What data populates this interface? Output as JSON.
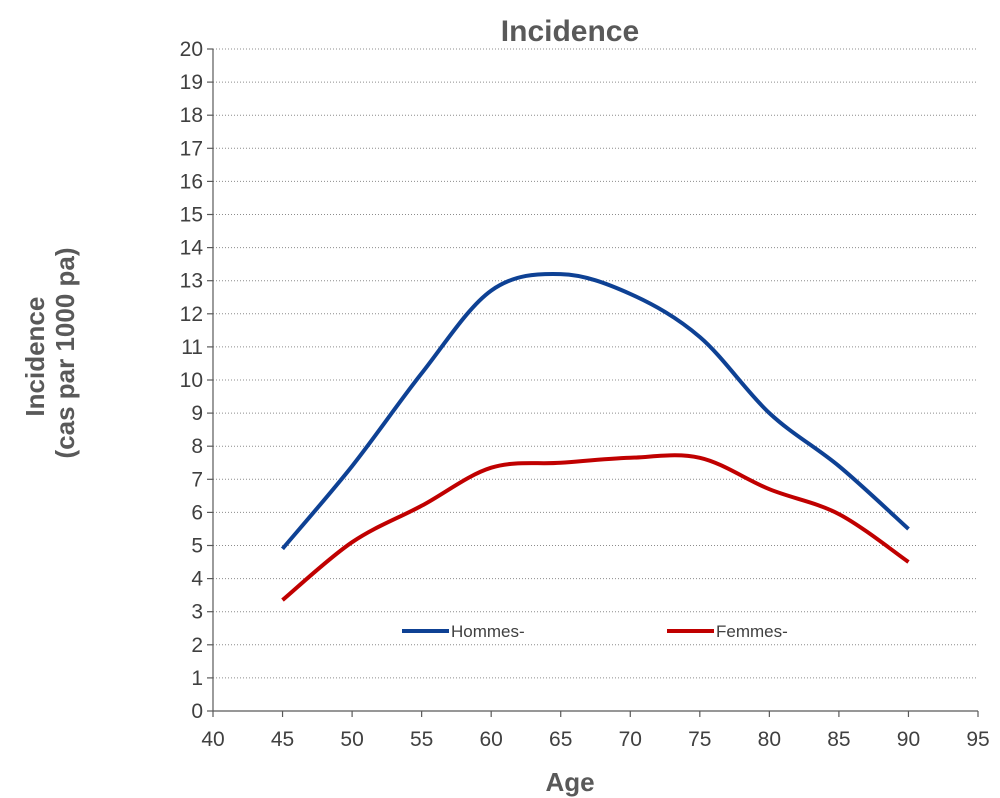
{
  "chart_data": {
    "type": "line",
    "title": "Incidence",
    "xlabel": "Age",
    "ylabel": [
      "Incidence",
      "(cas par 1000 pa)"
    ],
    "xlim": [
      40,
      95
    ],
    "ylim": [
      0,
      20
    ],
    "x_ticks": [
      40,
      45,
      50,
      55,
      60,
      65,
      70,
      75,
      80,
      85,
      90,
      95
    ],
    "y_ticks": [
      0,
      1,
      2,
      3,
      4,
      5,
      6,
      7,
      8,
      9,
      10,
      11,
      12,
      13,
      14,
      15,
      16,
      17,
      18,
      19,
      20
    ],
    "grid": true,
    "legend_position": "bottom-inside",
    "x": [
      45,
      50,
      55,
      60,
      65,
      70,
      75,
      80,
      85,
      90
    ],
    "series": [
      {
        "name": "Hommes-",
        "color": "#0e4194",
        "values": [
          4.9,
          7.4,
          10.2,
          12.7,
          13.2,
          12.6,
          11.3,
          9.0,
          7.4,
          5.5
        ]
      },
      {
        "name": "Femmes-",
        "color": "#c00000",
        "values": [
          3.35,
          5.1,
          6.2,
          7.35,
          7.5,
          7.65,
          7.65,
          6.7,
          5.95,
          4.5
        ]
      }
    ]
  }
}
